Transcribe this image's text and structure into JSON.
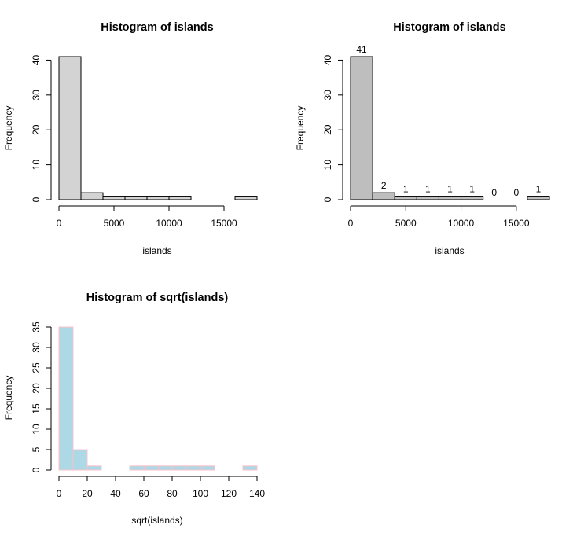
{
  "chart_data": [
    {
      "type": "bar",
      "title": "Histogram of islands",
      "xlabel": "islands",
      "ylabel": "Frequency",
      "breaks": [
        0,
        2000,
        4000,
        6000,
        8000,
        10000,
        12000,
        14000,
        16000,
        18000
      ],
      "values": [
        41,
        2,
        1,
        1,
        1,
        1,
        0,
        0,
        1
      ],
      "xlim": [
        0,
        18000
      ],
      "ylim": [
        0,
        41
      ],
      "xticks": [
        0,
        5000,
        10000,
        15000
      ],
      "xtick_labels": [
        "0",
        "5000",
        "10000",
        "15000"
      ],
      "yticks": [
        0,
        10,
        20,
        30,
        40
      ],
      "ytick_labels": [
        "0",
        "10",
        "20",
        "30",
        "40"
      ],
      "fill": "#d3d3d3",
      "border": "#000000",
      "show_labels": false
    },
    {
      "type": "bar",
      "title": "Histogram of islands",
      "xlabel": "islands",
      "ylabel": "Frequency",
      "breaks": [
        0,
        2000,
        4000,
        6000,
        8000,
        10000,
        12000,
        14000,
        16000,
        18000
      ],
      "values": [
        41,
        2,
        1,
        1,
        1,
        1,
        0,
        0,
        1
      ],
      "value_labels": [
        "41",
        "2",
        "1",
        "1",
        "1",
        "1",
        "0",
        "0",
        "1"
      ],
      "xlim": [
        0,
        18000
      ],
      "ylim": [
        0,
        41
      ],
      "xticks": [
        0,
        5000,
        10000,
        15000
      ],
      "xtick_labels": [
        "0",
        "5000",
        "10000",
        "15000"
      ],
      "yticks": [
        0,
        10,
        20,
        30,
        40
      ],
      "ytick_labels": [
        "0",
        "10",
        "20",
        "30",
        "40"
      ],
      "fill": "#bebebe",
      "border": "#000000",
      "show_labels": true
    },
    {
      "type": "bar",
      "title": "Histogram of sqrt(islands)",
      "xlabel": "sqrt(islands)",
      "ylabel": "Frequency",
      "breaks": [
        0,
        10,
        20,
        30,
        40,
        50,
        60,
        70,
        80,
        90,
        100,
        110,
        120,
        130,
        140
      ],
      "values": [
        35,
        5,
        1,
        0,
        0,
        1,
        1,
        1,
        1,
        1,
        1,
        0,
        0,
        1
      ],
      "xlim": [
        0,
        140
      ],
      "ylim": [
        0,
        35
      ],
      "xticks": [
        0,
        20,
        40,
        60,
        80,
        100,
        120,
        140
      ],
      "xtick_labels": [
        "0",
        "20",
        "40",
        "60",
        "80",
        "100",
        "120",
        "140"
      ],
      "yticks": [
        0,
        5,
        10,
        15,
        20,
        25,
        30,
        35
      ],
      "ytick_labels": [
        "0",
        "5",
        "10",
        "15",
        "20",
        "25",
        "30",
        "35"
      ],
      "fill": "#add8e6",
      "border": "#ffc0cb",
      "show_labels": false
    }
  ]
}
